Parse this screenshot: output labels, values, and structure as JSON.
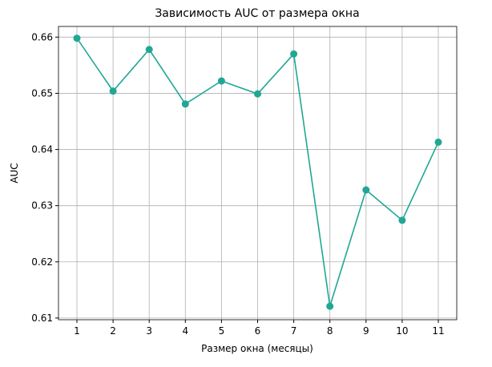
{
  "chart_data": {
    "type": "line",
    "title": "Зависимость AUC от размера окна",
    "x_label": "Размер окна (месяцы)",
    "y_label": "AUC",
    "x": [
      1,
      2,
      3,
      4,
      5,
      6,
      7,
      8,
      9,
      10,
      11
    ],
    "series": [
      {
        "name": "AUC",
        "color": "#20a795",
        "values": [
          0.6598,
          0.6504,
          0.6578,
          0.6481,
          0.6522,
          0.6499,
          0.657,
          0.6121,
          0.6328,
          0.6274,
          0.6413
        ]
      }
    ],
    "xlim": [
      0.49,
      11.51
    ],
    "xticks": [
      1,
      2,
      3,
      4,
      5,
      6,
      7,
      8,
      9,
      10,
      11
    ],
    "ylim": [
      0.6097,
      0.6619
    ],
    "yticks": [
      0.61,
      0.62,
      0.63,
      0.64,
      0.65,
      0.66
    ],
    "grid": true,
    "legend": false
  }
}
